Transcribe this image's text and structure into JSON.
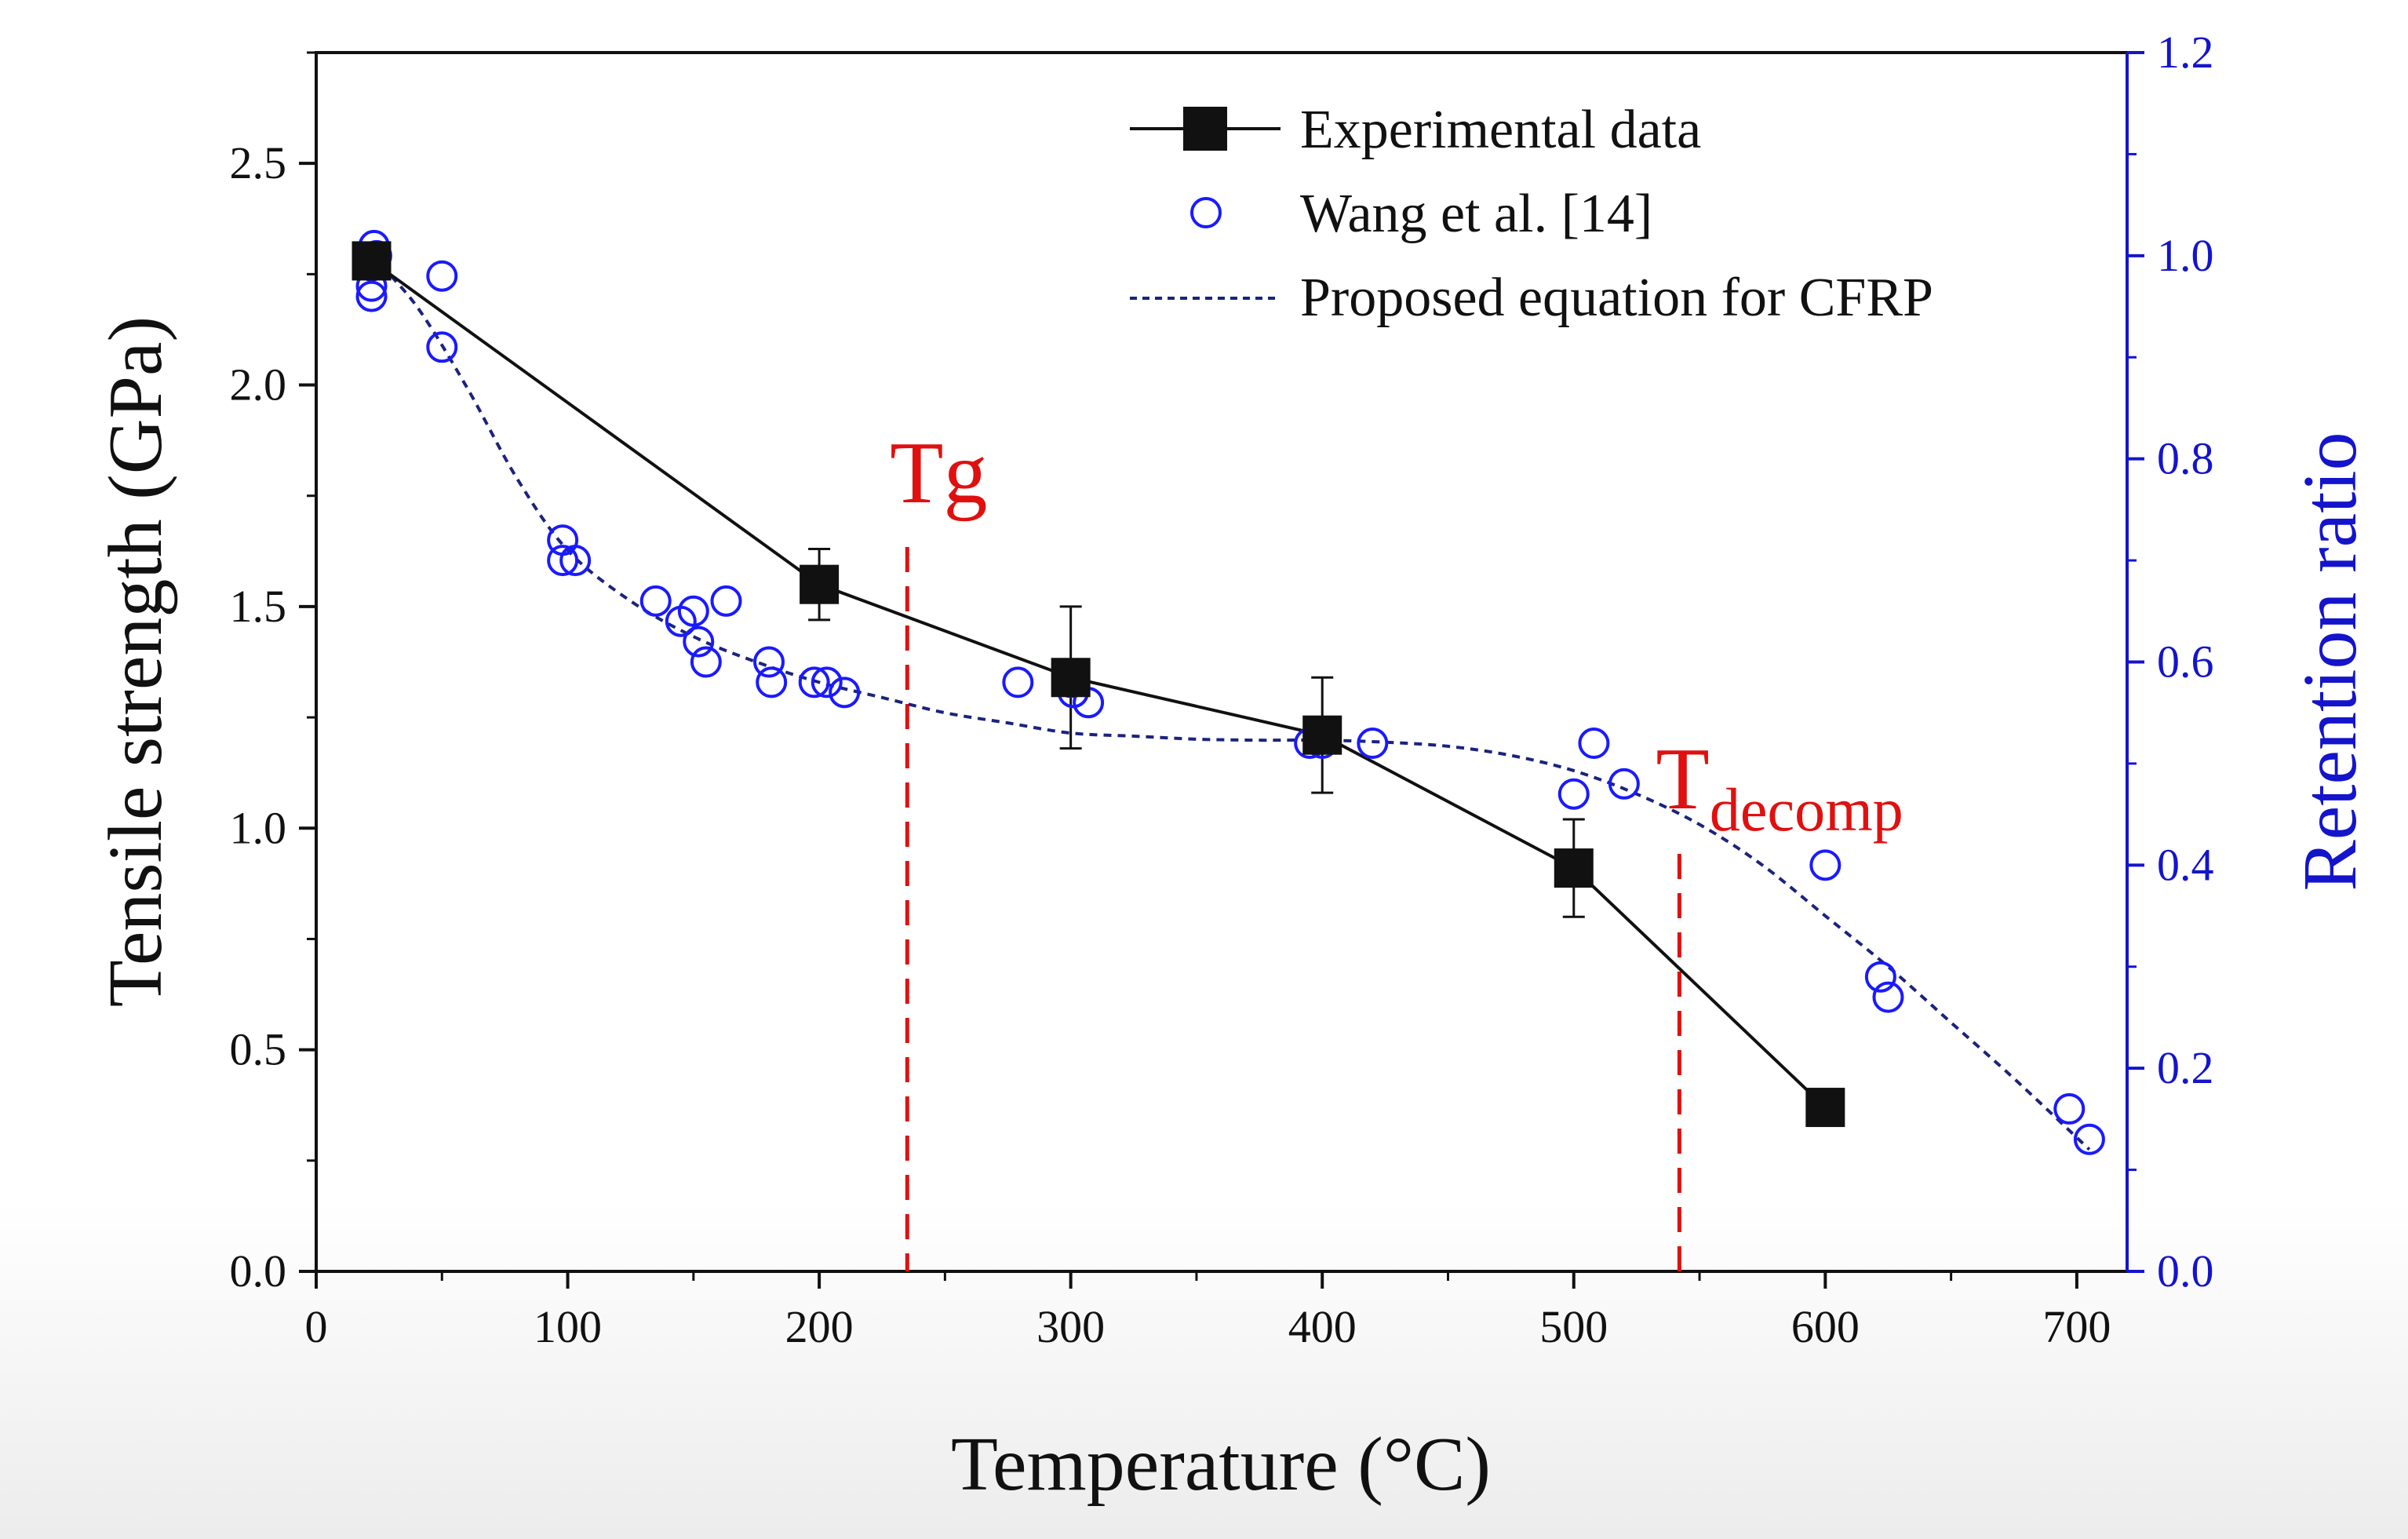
{
  "chart_data": {
    "type": "line",
    "title": "",
    "xlabel": "Temperature (°C)",
    "ylabel": "Tensile strength (GPa)",
    "y2label": "Retention ratio",
    "xlim": [
      0,
      720
    ],
    "ylim": [
      0,
      2.75
    ],
    "y2lim": [
      0,
      1.2
    ],
    "xticks": [
      0,
      100,
      200,
      300,
      400,
      500,
      600,
      700
    ],
    "yticks": [
      0.0,
      0.5,
      1.0,
      1.5,
      2.0,
      2.5
    ],
    "y2ticks": [
      0.0,
      0.2,
      0.4,
      0.6,
      0.8,
      1.0,
      1.2
    ],
    "xtick_labels": [
      "0",
      "100",
      "200",
      "300",
      "400",
      "500",
      "600",
      "700"
    ],
    "ytick_labels": [
      "0.0",
      "0.5",
      "1.0",
      "1.5",
      "2.0",
      "2.5"
    ],
    "y2tick_labels": [
      "0.0",
      "0.2",
      "0.4",
      "0.6",
      "0.8",
      "1.0",
      "1.2"
    ],
    "legend_position": "top-right",
    "series": [
      {
        "name": "Experimental data",
        "axis": "left",
        "kind": "line-marker-square",
        "color": "#111111",
        "x": [
          22,
          200,
          300,
          400,
          500,
          600
        ],
        "values": [
          2.28,
          1.55,
          1.34,
          1.21,
          0.91,
          0.37
        ],
        "error": [
          0.0,
          0.08,
          0.16,
          0.13,
          0.11,
          0.0
        ]
      },
      {
        "name": "Wang et al. [14]",
        "axis": "right",
        "kind": "scatter-open-circle",
        "color": "#1a1aff",
        "x": [
          22,
          23,
          22,
          24,
          22,
          50,
          50,
          98,
          98,
          103,
          135,
          145,
          150,
          152,
          155,
          163,
          180,
          181,
          198,
          203,
          210,
          279,
          300,
          301,
          307,
          395,
          400,
          420,
          500,
          508,
          520,
          600,
          622,
          625,
          697,
          705
        ],
        "values": [
          0.99,
          1.01,
          0.97,
          1.0,
          0.96,
          0.98,
          0.91,
          0.72,
          0.7,
          0.7,
          0.66,
          0.64,
          0.65,
          0.62,
          0.6,
          0.66,
          0.6,
          0.58,
          0.58,
          0.58,
          0.57,
          0.58,
          0.58,
          0.57,
          0.56,
          0.52,
          0.52,
          0.52,
          0.47,
          0.52,
          0.48,
          0.4,
          0.29,
          0.27,
          0.16,
          0.13
        ]
      },
      {
        "name": "Proposed equation for CFRP",
        "axis": "right",
        "kind": "dashed-line",
        "color": "#1a237e",
        "x": [
          22,
          40,
          60,
          80,
          100,
          125,
          150,
          175,
          200,
          225,
          250,
          275,
          300,
          325,
          350,
          375,
          400,
          425,
          450,
          475,
          500,
          525,
          550,
          575,
          600,
          625,
          650,
          675,
          705
        ],
        "values": [
          1.0,
          0.95,
          0.87,
          0.78,
          0.71,
          0.66,
          0.625,
          0.6,
          0.58,
          0.565,
          0.55,
          0.54,
          0.53,
          0.527,
          0.524,
          0.523,
          0.523,
          0.521,
          0.517,
          0.508,
          0.493,
          0.47,
          0.44,
          0.4,
          0.35,
          0.3,
          0.245,
          0.19,
          0.12
        ]
      }
    ],
    "annotations": [
      {
        "label": "Tg",
        "x": 235,
        "color": "#e01010",
        "style": "dashed-vertical"
      },
      {
        "label": "T",
        "subscript": "decomp",
        "x": 542,
        "color": "#e01010",
        "style": "dashed-vertical"
      }
    ]
  }
}
